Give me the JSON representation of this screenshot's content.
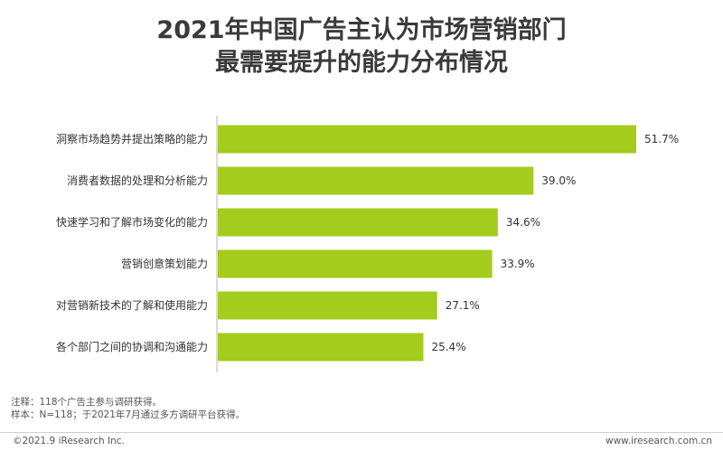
{
  "title": {
    "line1": "2021年中国广告主认为市场营销部门",
    "line2": "最需要提升的能力分布情况"
  },
  "chart_data": {
    "type": "bar",
    "orientation": "horizontal",
    "title": "2021年中国广告主认为市场营销部门最需要提升的能力分布情况",
    "categories": [
      "洞察市场趋势并提出策略的能力",
      "消费者数据的处理和分析能力",
      "快速学习和了解市场变化的能力",
      "营销创意策划能力",
      "对营销新技术的了解和使用能力",
      "各个部门之间的协调和沟通能力"
    ],
    "values": [
      51.7,
      39.0,
      34.6,
      33.9,
      27.1,
      25.4
    ],
    "value_labels": [
      "51.7%",
      "39.0%",
      "34.6%",
      "33.9%",
      "27.1%",
      "25.4%"
    ],
    "unit": "%",
    "xlim": [
      0,
      51.7
    ],
    "bar_color": "#a3cc1c",
    "axis_color": "#b5b5b5"
  },
  "notes": {
    "note": "注释：118个广告主参与调研获得。",
    "sample": "样本：N=118；于2021年7月通过多方调研平台获得。"
  },
  "footer": {
    "copyright": "©2021.9 iResearch Inc.",
    "website": "www.iresearch.com.cn"
  }
}
